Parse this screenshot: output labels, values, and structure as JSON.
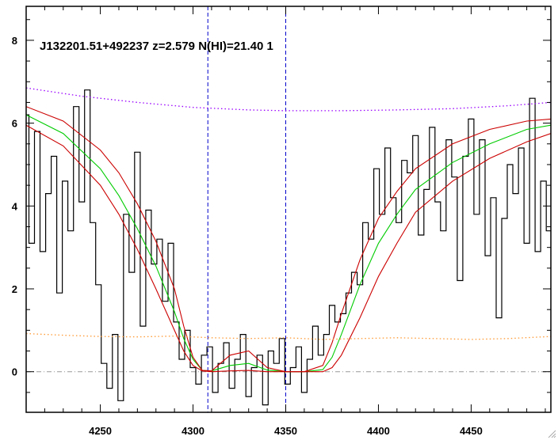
{
  "chart_data": {
    "type": "line",
    "title": "J132201.51+492237 z=2.579 N(HI)=21.40 1",
    "xlabel": "",
    "ylabel": "",
    "xlim": [
      4210,
      4493
    ],
    "ylim": [
      -0.98,
      8.82
    ],
    "x_ticks": [
      4250,
      4300,
      4350,
      4400,
      4450
    ],
    "y_ticks": [
      0,
      2,
      4,
      6,
      8
    ],
    "grid": false,
    "legend": "none",
    "vertical_markers": [
      4308,
      4350
    ],
    "colors": {
      "flux": "#000000",
      "model": "#00cc00",
      "model_bounds": "#cc0000",
      "continuum": "#9900ff",
      "error": "#ff9933",
      "markers": "#0000cc",
      "zero_line": "#999999"
    },
    "series": [
      {
        "style": "histogram",
        "x": [
          4210,
          4213,
          4216,
          4219,
          4222,
          4225,
          4228,
          4231,
          4234,
          4237,
          4240,
          4243,
          4246,
          4249,
          4252,
          4255,
          4258,
          4261,
          4264,
          4267,
          4270,
          4273,
          4276,
          4279,
          4282,
          4285,
          4288,
          4291,
          4294,
          4297,
          4300,
          4303,
          4306,
          4309,
          4312,
          4315,
          4318,
          4321,
          4324,
          4327,
          4330,
          4333,
          4336,
          4339,
          4342,
          4345,
          4348,
          4351,
          4354,
          4357,
          4360,
          4363,
          4366,
          4369,
          4372,
          4375,
          4378,
          4381,
          4384,
          4387,
          4390,
          4393,
          4396,
          4399,
          4402,
          4405,
          4408,
          4411,
          4414,
          4417,
          4420,
          4423,
          4426,
          4429,
          4432,
          4435,
          4438,
          4441,
          4444,
          4447,
          4450,
          4453,
          4456,
          4459,
          4462,
          4465,
          4468,
          4471,
          4474,
          4477,
          4480,
          4483,
          4486,
          4489,
          4492
        ],
        "values": [
          6.2,
          3.1,
          5.8,
          2.9,
          4.3,
          5.2,
          1.9,
          4.6,
          3.4,
          6.4,
          4.1,
          6.8,
          3.6,
          2.1,
          0.2,
          -0.4,
          0.9,
          -0.7,
          3.8,
          2.4,
          5.3,
          1.1,
          3.9,
          2.6,
          3.2,
          1.7,
          3.1,
          1.2,
          0.3,
          1.0,
          0.1,
          -0.3,
          0.4,
          0.6,
          -0.5,
          0.2,
          0.7,
          -0.4,
          0.3,
          0.9,
          -0.6,
          0.1,
          0.4,
          -0.8,
          0.5,
          0.2,
          0.8,
          -0.3,
          0.1,
          0.6,
          -0.5,
          0.3,
          1.1,
          0.4,
          0.9,
          1.6,
          1.2,
          1.4,
          1.9,
          2.4,
          2.1,
          3.6,
          3.2,
          4.9,
          3.8,
          5.4,
          4.2,
          3.6,
          5.1,
          4.8,
          5.7,
          3.3,
          4.4,
          5.9,
          4.1,
          3.4,
          5.6,
          4.7,
          2.2,
          5.2,
          6.1,
          3.8,
          5.6,
          2.8,
          4.2,
          1.3,
          3.7,
          5.0,
          4.3,
          5.4,
          3.1,
          6.6,
          2.9,
          4.6,
          3.4
        ]
      },
      {
        "style": "line",
        "color_key": "model",
        "x": [
          4210,
          4230,
          4250,
          4260,
          4270,
          4280,
          4290,
          4295,
          4300,
          4305,
          4310,
          4320,
          4330,
          4340,
          4350,
          4360,
          4370,
          4375,
          4380,
          4390,
          4400,
          4410,
          4420,
          4440,
          4460,
          4480,
          4493
        ],
        "values": [
          6.2,
          5.75,
          4.9,
          4.25,
          3.45,
          2.55,
          1.45,
          0.8,
          0.3,
          0.03,
          0.02,
          0.15,
          0.2,
          0.04,
          0.0,
          0.0,
          0.05,
          0.35,
          0.9,
          2.1,
          3.1,
          3.8,
          4.4,
          5.05,
          5.5,
          5.85,
          5.95
        ]
      },
      {
        "style": "line",
        "color_key": "model_bounds",
        "x": [
          4210,
          4230,
          4250,
          4260,
          4270,
          4280,
          4290,
          4295,
          4300,
          4305,
          4310,
          4320,
          4330,
          4340,
          4350,
          4360,
          4370,
          4375,
          4380,
          4390,
          4400,
          4410,
          4420,
          4440,
          4460,
          4480,
          4493
        ],
        "values": [
          6.4,
          6.05,
          5.35,
          4.8,
          4.05,
          3.15,
          2.0,
          1.1,
          0.35,
          0.03,
          0.02,
          0.4,
          0.5,
          0.1,
          0.0,
          0.0,
          0.15,
          0.7,
          1.4,
          2.7,
          3.7,
          4.35,
          4.9,
          5.5,
          5.85,
          6.05,
          6.1
        ]
      },
      {
        "style": "line",
        "color_key": "model_bounds",
        "x": [
          4210,
          4230,
          4250,
          4260,
          4270,
          4280,
          4290,
          4295,
          4300,
          4305,
          4310,
          4320,
          4330,
          4340,
          4350,
          4360,
          4370,
          4375,
          4380,
          4390,
          4400,
          4410,
          4420,
          4440,
          4460,
          4480,
          4493
        ],
        "values": [
          5.95,
          5.45,
          4.5,
          3.8,
          2.95,
          2.0,
          1.0,
          0.5,
          0.15,
          0.02,
          0.0,
          0.02,
          0.03,
          0.0,
          0.0,
          0.0,
          0.0,
          0.1,
          0.4,
          1.3,
          2.3,
          3.1,
          3.85,
          4.6,
          5.15,
          5.55,
          5.75
        ]
      },
      {
        "style": "dotted",
        "color_key": "continuum",
        "x": [
          4210,
          4240,
          4270,
          4300,
          4330,
          4350,
          4380,
          4410,
          4440,
          4470,
          4493
        ],
        "values": [
          6.85,
          6.65,
          6.5,
          6.38,
          6.32,
          6.3,
          6.3,
          6.32,
          6.35,
          6.42,
          6.5
        ]
      },
      {
        "style": "dotted",
        "color_key": "error",
        "x": [
          4210,
          4230,
          4250,
          4270,
          4290,
          4310,
          4330,
          4350,
          4370,
          4390,
          4410,
          4430,
          4450,
          4470,
          4493
        ],
        "values": [
          0.92,
          0.88,
          0.85,
          0.84,
          0.86,
          0.82,
          0.8,
          0.82,
          0.78,
          0.8,
          0.82,
          0.8,
          0.78,
          0.8,
          0.85
        ]
      }
    ]
  }
}
